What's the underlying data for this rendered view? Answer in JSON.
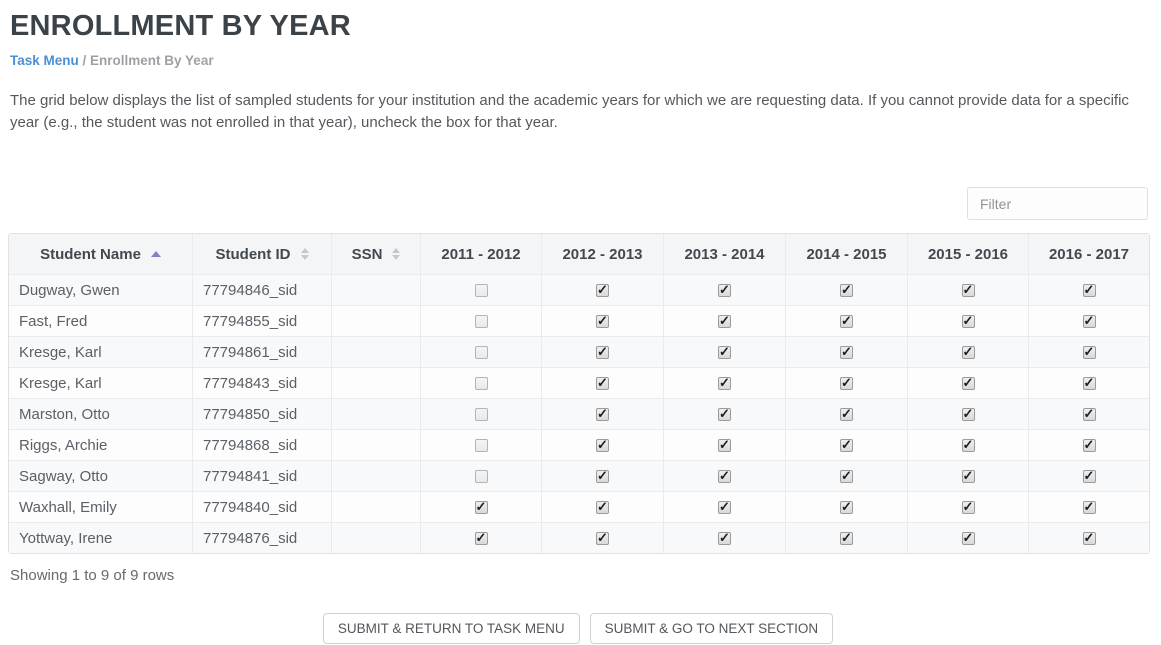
{
  "page": {
    "title": "ENROLLMENT BY YEAR",
    "breadcrumb": {
      "link": "Task Menu",
      "separator": " / ",
      "current": "Enrollment By Year"
    },
    "description": "The grid below displays the list of sampled students for your institution and the academic years for which we are requesting data. If you cannot provide data for a specific year (e.g., the student was not enrolled in that year), uncheck the box for that year."
  },
  "filter": {
    "placeholder": "Filter"
  },
  "table": {
    "sort_columns": [
      {
        "label": "Student Name",
        "sorted": "asc"
      },
      {
        "label": "Student ID",
        "sorted": "none"
      },
      {
        "label": "SSN",
        "sorted": "none"
      }
    ],
    "year_columns": [
      "2011 - 2012",
      "2012 - 2013",
      "2013 - 2014",
      "2014 - 2015",
      "2015 - 2016",
      "2016 - 2017"
    ],
    "rows": [
      {
        "name": "Dugway, Gwen",
        "id": "77794846_sid",
        "ssn": "",
        "checks": [
          false,
          true,
          true,
          true,
          true,
          true
        ]
      },
      {
        "name": "Fast, Fred",
        "id": "77794855_sid",
        "ssn": "",
        "checks": [
          false,
          true,
          true,
          true,
          true,
          true
        ]
      },
      {
        "name": "Kresge, Karl",
        "id": "77794861_sid",
        "ssn": "",
        "checks": [
          false,
          true,
          true,
          true,
          true,
          true
        ]
      },
      {
        "name": "Kresge, Karl",
        "id": "77794843_sid",
        "ssn": "",
        "checks": [
          false,
          true,
          true,
          true,
          true,
          true
        ]
      },
      {
        "name": "Marston, Otto",
        "id": "77794850_sid",
        "ssn": "",
        "checks": [
          false,
          true,
          true,
          true,
          true,
          true
        ]
      },
      {
        "name": "Riggs, Archie",
        "id": "77794868_sid",
        "ssn": "",
        "checks": [
          false,
          true,
          true,
          true,
          true,
          true
        ]
      },
      {
        "name": "Sagway, Otto",
        "id": "77794841_sid",
        "ssn": "",
        "checks": [
          false,
          true,
          true,
          true,
          true,
          true
        ]
      },
      {
        "name": "Waxhall, Emily",
        "id": "77794840_sid",
        "ssn": "",
        "checks": [
          true,
          true,
          true,
          true,
          true,
          true
        ]
      },
      {
        "name": "Yottway, Irene",
        "id": "77794876_sid",
        "ssn": "",
        "checks": [
          true,
          true,
          true,
          true,
          true,
          true
        ]
      }
    ]
  },
  "footer": {
    "showing": "Showing 1 to 9 of 9 rows"
  },
  "buttons": {
    "submit_return": "SUBMIT & RETURN TO TASK MENU",
    "submit_next": "SUBMIT & GO TO NEXT SECTION"
  },
  "colors": {
    "title": "#3b4349",
    "breadcrumb_link": "#4a90d2",
    "breadcrumb_current": "#9ca1a6",
    "sort_active_caret": "#8083cc",
    "sort_inactive_caret": "#c6c9cc",
    "header_bg": "#f4f5f6",
    "row_odd_bg": "#f8f9fa",
    "row_even_bg": "#fdfdfe",
    "table_border": "#e9ebed"
  }
}
